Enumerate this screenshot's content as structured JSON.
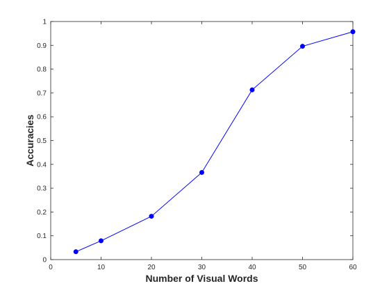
{
  "chart_data": {
    "type": "line",
    "title": "",
    "xlabel": "Number of Visual Words",
    "ylabel": "Accuracies",
    "xlim": [
      0,
      60
    ],
    "ylim": [
      0,
      1
    ],
    "x_ticks": [
      "0",
      "10",
      "20",
      "30",
      "40",
      "50",
      "60"
    ],
    "y_ticks": [
      "0",
      "0.1",
      "0.2",
      "0.3",
      "0.4",
      "0.5",
      "0.6",
      "0.7",
      "0.8",
      "0.9",
      "1"
    ],
    "grid": false,
    "legend": "none",
    "series": [
      {
        "color": "#0000ff",
        "marker": "circle",
        "x": [
          5,
          10,
          20,
          30,
          40,
          50,
          60
        ],
        "y": [
          0.033,
          0.079,
          0.182,
          0.366,
          0.713,
          0.896,
          0.957
        ]
      }
    ]
  }
}
